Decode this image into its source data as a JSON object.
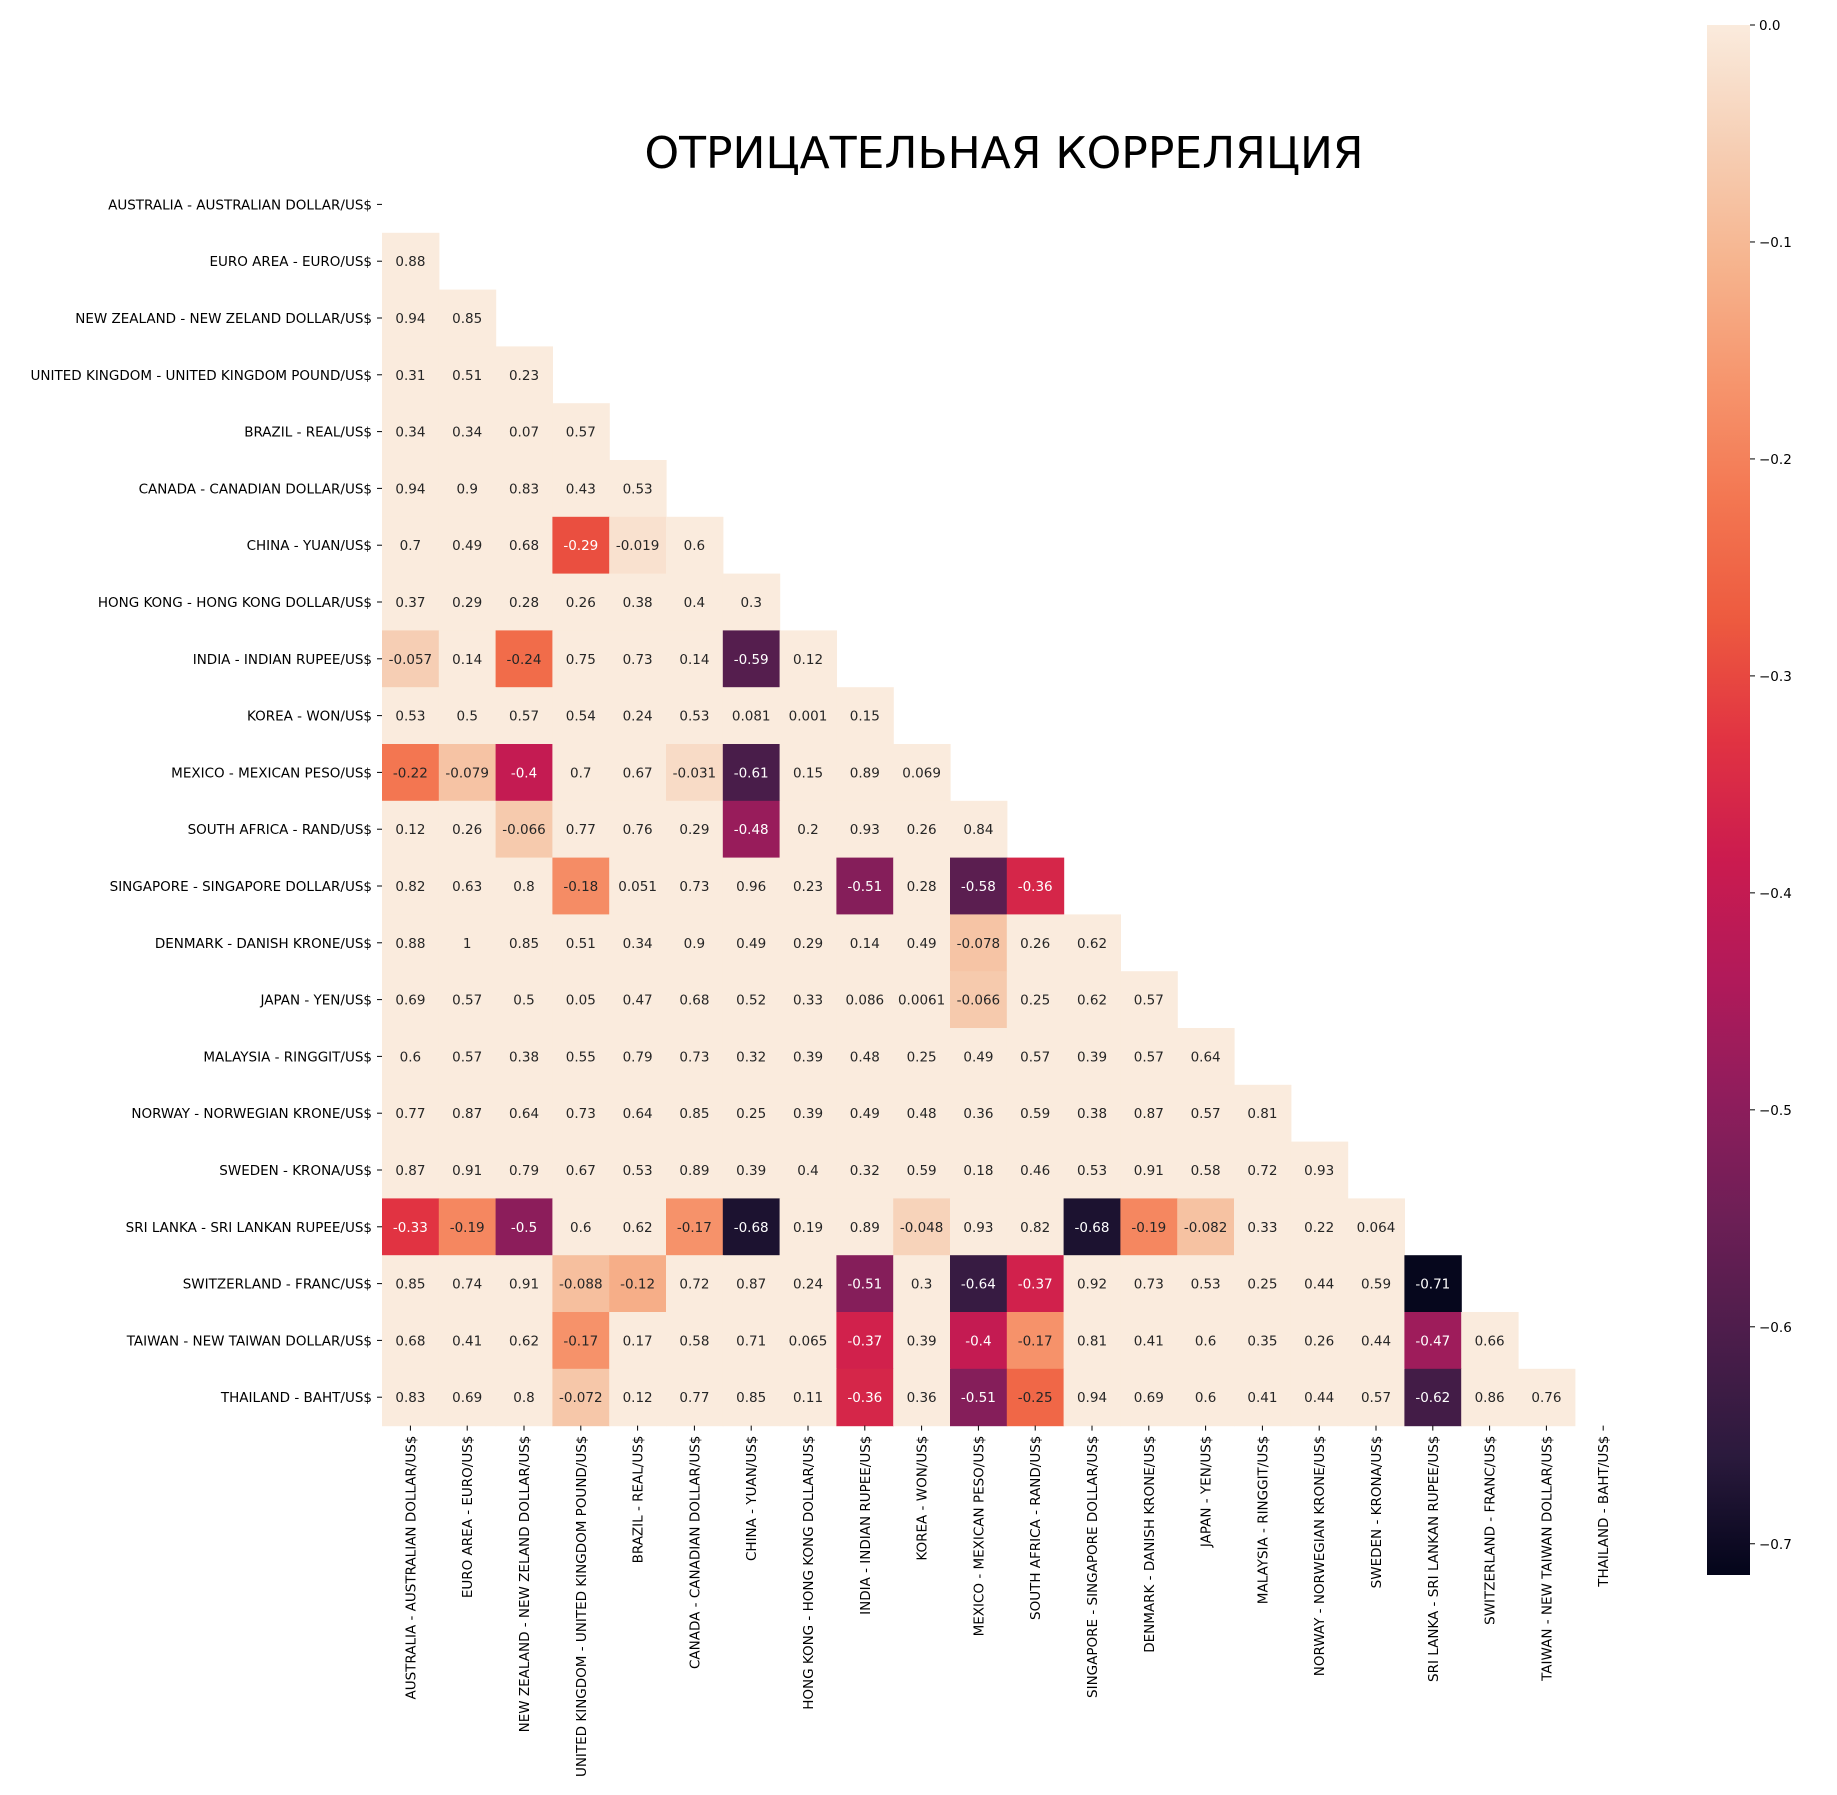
{
  "chart_data": {
    "type": "heatmap",
    "title": "ОТРИЦАТЕЛЬНАЯ КОРРЕЛЯЦИЯ",
    "mask": "upper-triangle-including-diagonal",
    "labels": [
      "AUSTRALIA - AUSTRALIAN DOLLAR/US$",
      "EURO AREA - EURO/US$",
      "NEW ZEALAND - NEW ZELAND DOLLAR/US$",
      "UNITED KINGDOM - UNITED KINGDOM POUND/US$",
      "BRAZIL - REAL/US$",
      "CANADA - CANADIAN DOLLAR/US$",
      "CHINA - YUAN/US$",
      "HONG KONG - HONG KONG DOLLAR/US$",
      "INDIA - INDIAN RUPEE/US$",
      "KOREA - WON/US$",
      "MEXICO - MEXICAN PESO/US$",
      "SOUTH AFRICA - RAND/US$",
      "SINGAPORE - SINGAPORE DOLLAR/US$",
      "DENMARK - DANISH KRONE/US$",
      "JAPAN - YEN/US$",
      "MALAYSIA - RINGGIT/US$",
      "NORWAY - NORWEGIAN KRONE/US$",
      "SWEDEN - KRONA/US$",
      "SRI LANKA - SRI LANKAN RUPEE/US$",
      "SWITZERLAND - FRANC/US$",
      "TAIWAN - NEW TAIWAN DOLLAR/US$",
      "THAILAND - BAHT/US$"
    ],
    "cells": [
      [],
      [
        "0.88"
      ],
      [
        "0.94",
        "0.85"
      ],
      [
        "0.31",
        "0.51",
        "0.23"
      ],
      [
        "0.34",
        "0.34",
        "0.07",
        "0.57"
      ],
      [
        "0.94",
        "0.9",
        "0.83",
        "0.43",
        "0.53"
      ],
      [
        "0.7",
        "0.49",
        "0.68",
        "-0.29",
        "-0.019",
        "0.6"
      ],
      [
        "0.37",
        "0.29",
        "0.28",
        "0.26",
        "0.38",
        "0.4",
        "0.3"
      ],
      [
        "-0.057",
        "0.14",
        "-0.24",
        "0.75",
        "0.73",
        "0.14",
        "-0.59",
        "0.12"
      ],
      [
        "0.53",
        "0.5",
        "0.57",
        "0.54",
        "0.24",
        "0.53",
        "0.081",
        "0.001",
        "0.15"
      ],
      [
        "-0.22",
        "-0.079",
        "-0.4",
        "0.7",
        "0.67",
        "-0.031",
        "-0.61",
        "0.15",
        "0.89",
        "0.069"
      ],
      [
        "0.12",
        "0.26",
        "-0.066",
        "0.77",
        "0.76",
        "0.29",
        "-0.48",
        "0.2",
        "0.93",
        "0.26",
        "0.84"
      ],
      [
        "0.82",
        "0.63",
        "0.8",
        "-0.18",
        "0.051",
        "0.73",
        "0.96",
        "0.23",
        "-0.51",
        "0.28",
        "-0.58",
        "-0.36"
      ],
      [
        "0.88",
        "1",
        "0.85",
        "0.51",
        "0.34",
        "0.9",
        "0.49",
        "0.29",
        "0.14",
        "0.49",
        "-0.078",
        "0.26",
        "0.62"
      ],
      [
        "0.69",
        "0.57",
        "0.5",
        "0.05",
        "0.47",
        "0.68",
        "0.52",
        "0.33",
        "0.086",
        "0.0061",
        "-0.066",
        "0.25",
        "0.62",
        "0.57"
      ],
      [
        "0.6",
        "0.57",
        "0.38",
        "0.55",
        "0.79",
        "0.73",
        "0.32",
        "0.39",
        "0.48",
        "0.25",
        "0.49",
        "0.57",
        "0.39",
        "0.57",
        "0.64"
      ],
      [
        "0.77",
        "0.87",
        "0.64",
        "0.73",
        "0.64",
        "0.85",
        "0.25",
        "0.39",
        "0.49",
        "0.48",
        "0.36",
        "0.59",
        "0.38",
        "0.87",
        "0.57",
        "0.81"
      ],
      [
        "0.87",
        "0.91",
        "0.79",
        "0.67",
        "0.53",
        "0.89",
        "0.39",
        "0.4",
        "0.32",
        "0.59",
        "0.18",
        "0.46",
        "0.53",
        "0.91",
        "0.58",
        "0.72",
        "0.93"
      ],
      [
        "-0.33",
        "-0.19",
        "-0.5",
        "0.6",
        "0.62",
        "-0.17",
        "-0.68",
        "0.19",
        "0.89",
        "-0.048",
        "0.93",
        "0.82",
        "-0.68",
        "-0.19",
        "-0.082",
        "0.33",
        "0.22",
        "0.064"
      ],
      [
        "0.85",
        "0.74",
        "0.91",
        "-0.088",
        "-0.12",
        "0.72",
        "0.87",
        "0.24",
        "-0.51",
        "0.3",
        "-0.64",
        "-0.37",
        "0.92",
        "0.73",
        "0.53",
        "0.25",
        "0.44",
        "0.59",
        "-0.71"
      ],
      [
        "0.68",
        "0.41",
        "0.62",
        "-0.17",
        "0.17",
        "0.58",
        "0.71",
        "0.065",
        "-0.37",
        "0.39",
        "-0.4",
        "-0.17",
        "0.81",
        "0.41",
        "0.6",
        "0.35",
        "0.26",
        "0.44",
        "-0.47",
        "0.66"
      ],
      [
        "0.83",
        "0.69",
        "0.8",
        "-0.072",
        "0.12",
        "0.77",
        "0.85",
        "0.11",
        "-0.36",
        "0.36",
        "-0.51",
        "-0.25",
        "0.94",
        "0.69",
        "0.6",
        "0.41",
        "0.44",
        "0.57",
        "-0.62",
        "0.86",
        "0.76"
      ]
    ],
    "colorbar": {
      "min": -0.7144,
      "max": 0.0,
      "ticks": [
        0.0,
        -0.1,
        -0.2,
        -0.3,
        -0.4,
        -0.5,
        -0.6,
        -0.7
      ],
      "tick_labels": [
        "0.0",
        "−0.1",
        "−0.2",
        "−0.3",
        "−0.4",
        "−0.5",
        "−0.6",
        "−0.7"
      ],
      "colormap": "rocket",
      "note": "values ≥ 0 are clipped to the top color"
    },
    "colors": {
      "stops": [
        "#03051a",
        "#2b1a3d",
        "#4c1d4b",
        "#6d1f56",
        "#8f1d5c",
        "#b11a5a",
        "#cb1b4f",
        "#e13342",
        "#ed5a3f",
        "#f37651",
        "#f6956d",
        "#f6b48e",
        "#f6cfb5",
        "#faebdd"
      ]
    }
  }
}
